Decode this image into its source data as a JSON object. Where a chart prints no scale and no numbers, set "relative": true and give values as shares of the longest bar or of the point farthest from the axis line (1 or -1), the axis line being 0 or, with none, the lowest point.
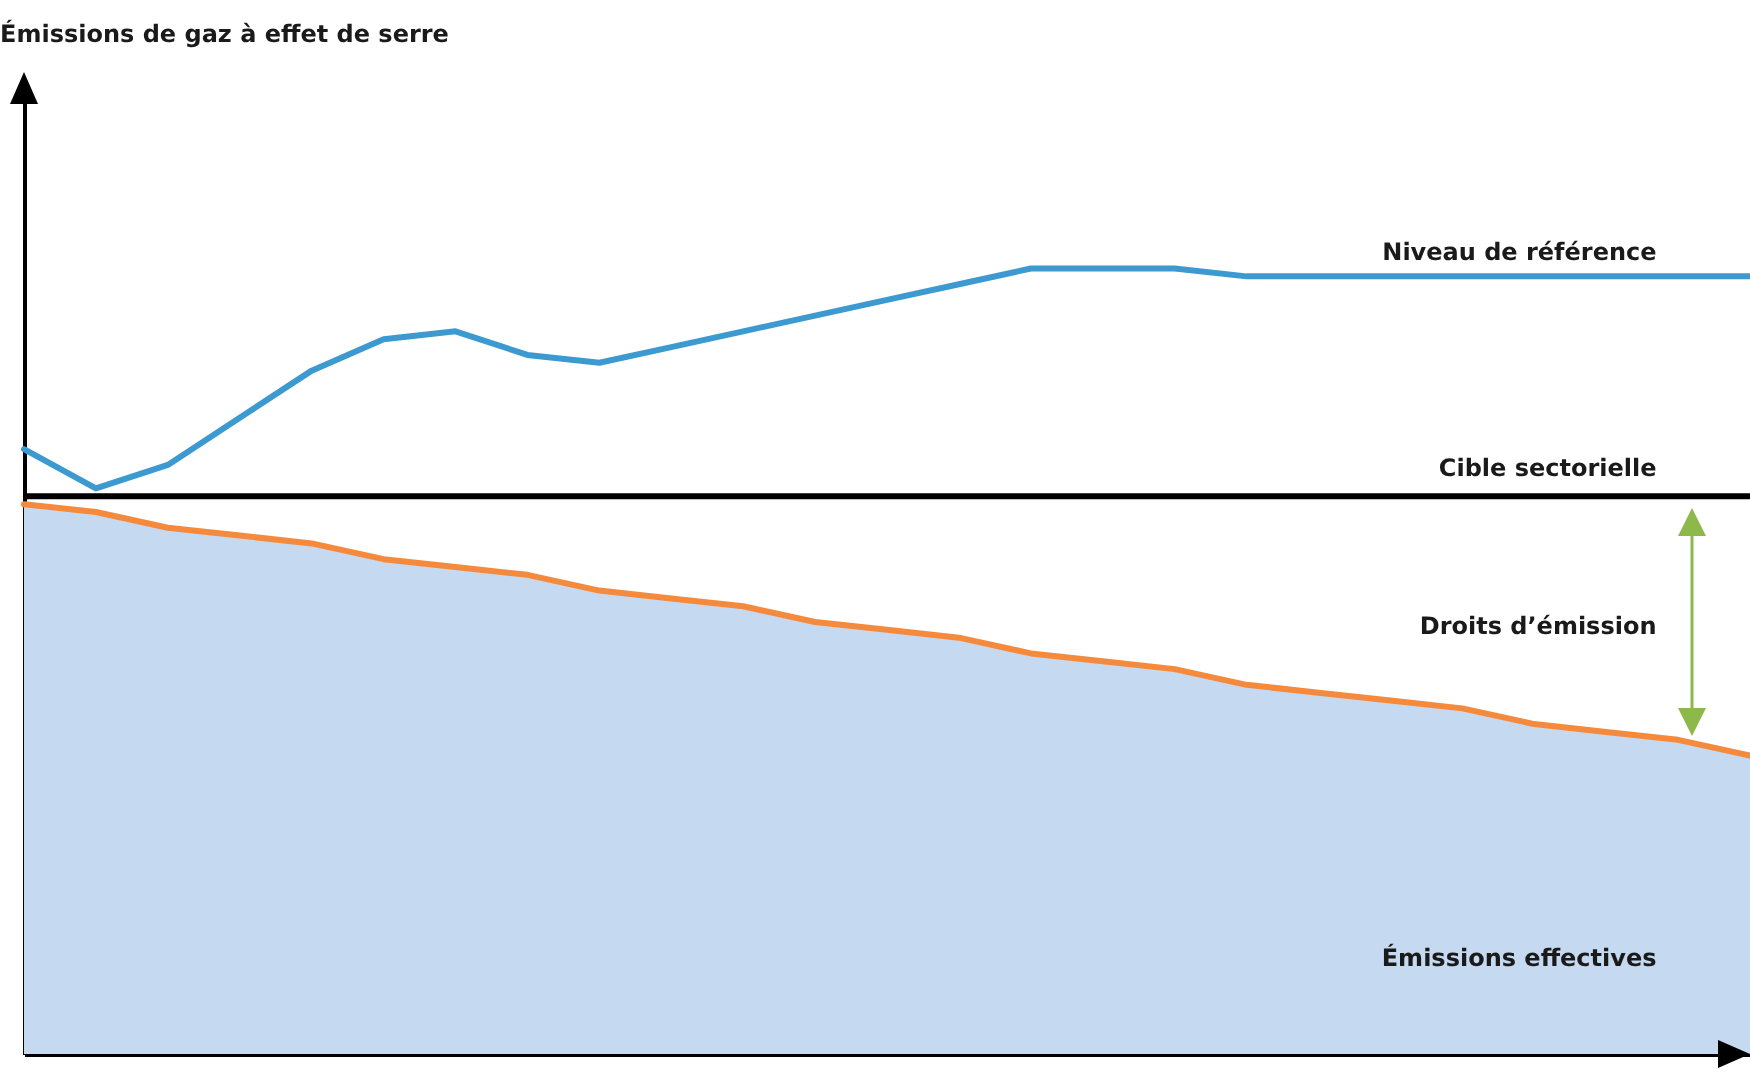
{
  "chart_data": {
    "type": "line",
    "title": "Émissions de gaz à effet de serre",
    "relative": true,
    "legend": false,
    "categories": [
      null,
      null,
      null,
      null,
      null,
      null,
      null,
      null,
      null,
      null,
      null,
      null,
      null,
      null,
      null,
      null,
      null,
      null,
      null,
      null,
      null,
      null,
      null,
      null,
      null
    ],
    "series": [
      {
        "name": "Émissions effectives",
        "type": "area",
        "color": "#c5d9f0",
        "values": [
          0.7,
          0.69,
          0.67,
          0.66,
          0.65,
          0.63,
          0.62,
          0.61,
          0.59,
          0.58,
          0.57,
          0.55,
          0.54,
          0.53,
          0.51,
          0.5,
          0.49,
          0.47,
          0.46,
          0.45,
          0.44,
          0.42,
          0.41,
          0.4,
          0.38
        ]
      },
      {
        "type": "line",
        "color": "#f58a3c",
        "values": [
          0.7,
          0.69,
          0.67,
          0.66,
          0.65,
          0.63,
          0.62,
          0.61,
          0.59,
          0.58,
          0.57,
          0.55,
          0.54,
          0.53,
          0.51,
          0.5,
          0.49,
          0.47,
          0.46,
          0.45,
          0.44,
          0.42,
          0.41,
          0.4,
          0.38
        ]
      },
      {
        "name": "Niveau de référence",
        "type": "line",
        "color": "#3d9ad1",
        "values": [
          0.77,
          0.72,
          0.75,
          0.81,
          0.87,
          0.91,
          0.92,
          0.89,
          0.88,
          0.9,
          0.92,
          0.94,
          0.96,
          0.98,
          1.0,
          1.0,
          1.0,
          0.99,
          0.99,
          0.99,
          0.99,
          0.99,
          0.99,
          0.99,
          0.99
        ]
      }
    ],
    "ref_lines": [
      {
        "axis": "y",
        "value": 0.71,
        "label": "Cible sectorielle",
        "color": "#000000"
      }
    ],
    "annotations": [
      "Droits d’émission"
    ]
  }
}
